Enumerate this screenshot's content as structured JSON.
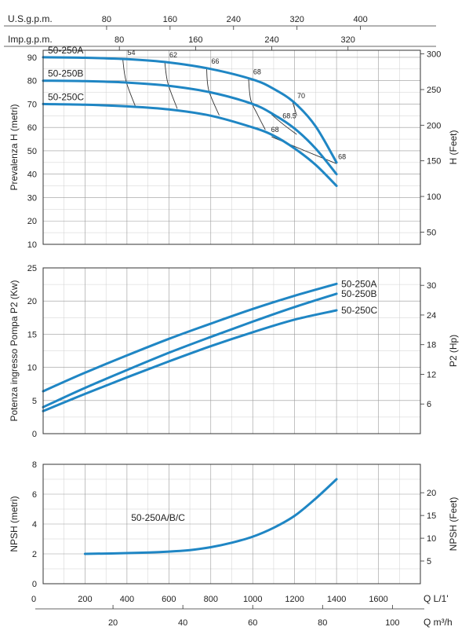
{
  "chart_data": {
    "type": "line",
    "top_axes": [
      {
        "label": "U.S.g.p.m.",
        "ticks": [
          80,
          160,
          240,
          320,
          400
        ],
        "per_lpm": 0.264172
      },
      {
        "label": "Imp.g.p.m.",
        "ticks": [
          80,
          160,
          240,
          320
        ],
        "per_lpm": 0.219969
      }
    ],
    "bottom_axes": [
      {
        "label": "Q L/1'",
        "ticks": [
          0,
          200,
          400,
          600,
          800,
          1000,
          1200,
          1400,
          1600
        ],
        "per_lpm": 1
      },
      {
        "label": "Q m³/h",
        "ticks": [
          20,
          40,
          60,
          80,
          100
        ],
        "per_lpm": 0.06
      }
    ],
    "xlim": [
      0,
      1800
    ],
    "panels": [
      {
        "id": "head",
        "ylabel": "Prevalenza H (metri)",
        "ylabel_right": "H (Feet)",
        "ylim": [
          10,
          93
        ],
        "yticks": [
          10,
          20,
          30,
          40,
          50,
          60,
          70,
          80,
          90
        ],
        "right_ticks": [
          50,
          100,
          150,
          200,
          250,
          300
        ],
        "right_per_unit": 3.28084,
        "series": [
          {
            "name": "50-250A",
            "x": [
              0,
              200,
              400,
              600,
              800,
              1000,
              1100,
              1200,
              1300,
              1400
            ],
            "y": [
              90,
              89.8,
              89.2,
              87.8,
              85,
              80.5,
              76.5,
              70.5,
              60.5,
              45
            ]
          },
          {
            "name": "50-250B",
            "x": [
              0,
              200,
              400,
              600,
              800,
              1000,
              1100,
              1200,
              1300,
              1400
            ],
            "y": [
              80,
              79.8,
              79.2,
              77.8,
              75,
              70,
              65.5,
              59.5,
              51,
              40
            ]
          },
          {
            "name": "50-250C",
            "x": [
              0,
              200,
              400,
              600,
              800,
              1000,
              1100,
              1200,
              1300,
              1400
            ],
            "y": [
              70,
              69.7,
              69,
              67.7,
              65,
              60,
              56.5,
              51,
              44,
              35
            ]
          }
        ],
        "efficiency_lines": [
          {
            "label": "54",
            "x": [
              380,
              395,
              440
            ],
            "y": [
              89.3,
              80,
              69
            ]
          },
          {
            "label": "62",
            "x": [
              580,
              595,
              640
            ],
            "y": [
              88.2,
              79,
              68
            ]
          },
          {
            "label": "66",
            "x": [
              780,
              790,
              840
            ],
            "y": [
              85.5,
              76,
              65.2
            ]
          },
          {
            "label": "68",
            "x": [
              980,
              990,
              1020,
              1060
            ],
            "y": [
              81,
              72,
              66,
              59
            ]
          },
          {
            "label": "70",
            "x": [
              1190,
              1210
            ],
            "y": [
              71,
              65
            ]
          },
          {
            "label": "68.5",
            "x": [
              1090,
              1150,
              1210
            ],
            "y": [
              65.5,
              61,
              57
            ]
          },
          {
            "label": "68",
            "x": [
              1090,
              1250,
              1400
            ],
            "y": [
              56,
              50,
              44.5
            ]
          }
        ],
        "efficiency_label_pos": [
          {
            "label": "54",
            "x": 395,
            "y": 91
          },
          {
            "label": "62",
            "x": 595,
            "y": 90
          },
          {
            "label": "66",
            "x": 795,
            "y": 87.3
          },
          {
            "label": "68",
            "x": 995,
            "y": 82.8
          },
          {
            "label": "70",
            "x": 1205,
            "y": 72.5
          },
          {
            "label": "68.5",
            "x": 1135,
            "y": 64
          },
          {
            "label": "68",
            "x": 1080,
            "y": 58
          },
          {
            "label": "68",
            "x": 1400,
            "y": 46.5
          }
        ]
      },
      {
        "id": "power",
        "ylabel": "Potenza ingresso Pompa P2 (Kw)",
        "ylabel_right": "P2 (Hp)",
        "ylim": [
          0,
          25
        ],
        "yticks": [
          0,
          5,
          10,
          15,
          20,
          25
        ],
        "right_ticks": [
          6,
          12,
          18,
          24,
          30
        ],
        "right_per_unit": 1.34102,
        "series": [
          {
            "name": "50-250A",
            "x": [
              0,
              200,
              400,
              600,
              800,
              1000,
              1200,
              1400
            ],
            "y": [
              6.4,
              9.2,
              11.8,
              14.3,
              16.6,
              18.8,
              20.8,
              22.6
            ]
          },
          {
            "name": "50-250B",
            "x": [
              0,
              200,
              400,
              600,
              800,
              1000,
              1200,
              1400
            ],
            "y": [
              4,
              6.9,
              9.6,
              12.2,
              14.6,
              16.9,
              19.1,
              21.1
            ]
          },
          {
            "name": "50-250C",
            "x": [
              0,
              200,
              400,
              600,
              800,
              1000,
              1200,
              1400
            ],
            "y": [
              3.4,
              6,
              8.5,
              10.9,
              13.2,
              15.3,
              17.2,
              18.6
            ]
          }
        ]
      },
      {
        "id": "npsh",
        "ylabel": "NPSH (metri)",
        "ylabel_right": "NPSH (Feet)",
        "ylim": [
          0,
          8
        ],
        "yticks": [
          0,
          2,
          4,
          6,
          8
        ],
        "right_ticks": [
          5,
          10,
          15,
          20
        ],
        "right_per_unit": 3.28084,
        "series": [
          {
            "name": "50-250A/B/C",
            "x": [
              200,
              400,
              600,
              700,
              800,
              900,
              1000,
              1100,
              1200,
              1300,
              1400
            ],
            "y": [
              2,
              2.05,
              2.15,
              2.25,
              2.45,
              2.75,
              3.15,
              3.75,
              4.55,
              5.7,
              7
            ]
          }
        ]
      }
    ]
  }
}
